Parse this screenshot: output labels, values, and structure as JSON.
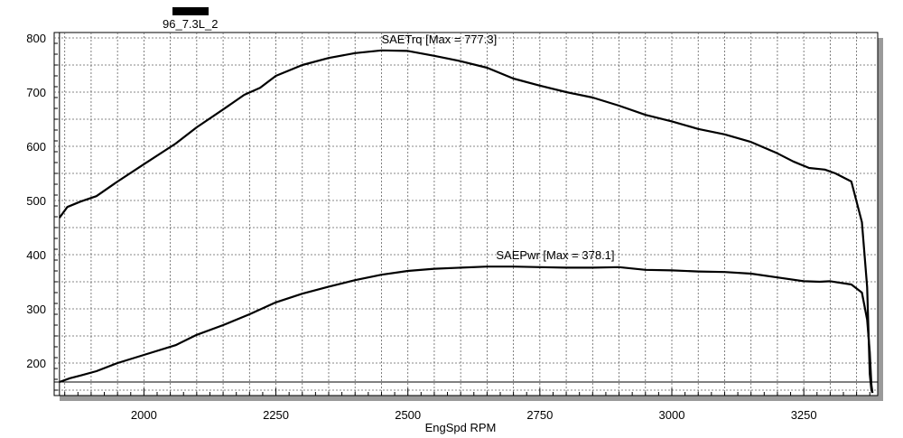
{
  "chart_data": {
    "type": "line",
    "title": "",
    "xlabel": "EngSpd RPM",
    "ylabel": "",
    "xlim": [
      1830,
      3390
    ],
    "ylim": [
      140,
      810
    ],
    "x_ticks": [
      2000,
      2250,
      2500,
      2750,
      3000,
      3250
    ],
    "y_ticks": [
      200,
      300,
      400,
      500,
      600,
      700,
      800
    ],
    "grid": true,
    "legend": {
      "placement": "top-left",
      "label": "96_7.3L_2"
    },
    "series": [
      {
        "name": "SAETrq",
        "label": "SAETrq [Max = 777.3]",
        "color": "#000000",
        "x": [
          1840,
          1855,
          1880,
          1910,
          1950,
          2000,
          2060,
          2100,
          2150,
          2190,
          2220,
          2250,
          2300,
          2350,
          2400,
          2450,
          2500,
          2550,
          2600,
          2650,
          2700,
          2750,
          2800,
          2850,
          2900,
          2950,
          3000,
          3050,
          3100,
          3150,
          3200,
          3230,
          3260,
          3290,
          3310,
          3340,
          3360,
          3370,
          3375,
          3378,
          3380
        ],
        "y": [
          468,
          488,
          498,
          508,
          535,
          567,
          605,
          635,
          668,
          695,
          708,
          730,
          750,
          763,
          772,
          777,
          776,
          767,
          757,
          745,
          725,
          712,
          700,
          690,
          675,
          658,
          646,
          632,
          622,
          608,
          587,
          572,
          560,
          557,
          550,
          535,
          460,
          340,
          180,
          150,
          145
        ]
      },
      {
        "name": "SAEPwr",
        "label": "SAEPwr [Max = 378.1]",
        "color": "#000000",
        "x": [
          1840,
          1860,
          1880,
          1910,
          1950,
          2000,
          2060,
          2100,
          2150,
          2200,
          2250,
          2300,
          2350,
          2400,
          2450,
          2500,
          2550,
          2600,
          2650,
          2700,
          2750,
          2800,
          2850,
          2900,
          2950,
          3000,
          3050,
          3100,
          3150,
          3200,
          3250,
          3280,
          3300,
          3340,
          3360,
          3370,
          3375,
          3378,
          3380
        ],
        "y": [
          165,
          172,
          177,
          185,
          200,
          215,
          233,
          252,
          270,
          290,
          312,
          328,
          341,
          353,
          363,
          370,
          374,
          376,
          378,
          378,
          377,
          376,
          376,
          377,
          372,
          371,
          369,
          368,
          365,
          358,
          351,
          350,
          351,
          345,
          330,
          280,
          220,
          160,
          145
        ]
      }
    ]
  }
}
